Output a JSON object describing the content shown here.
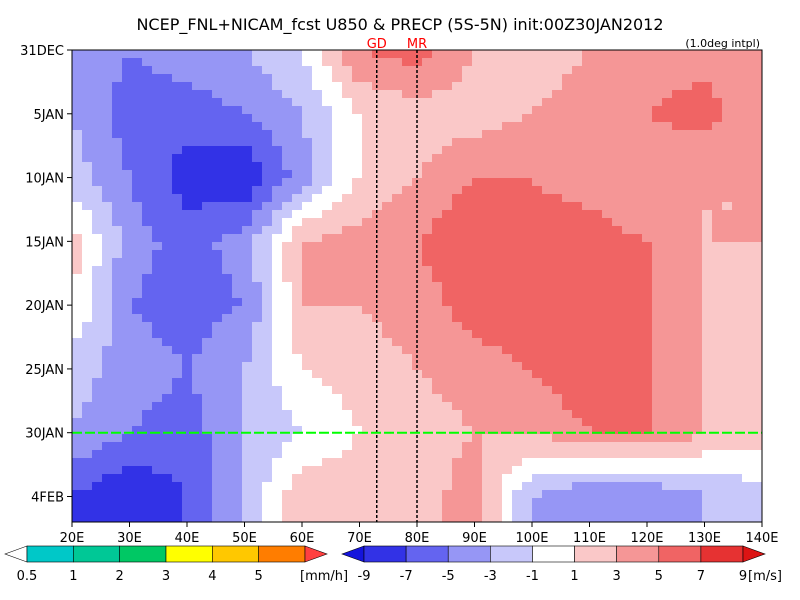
{
  "chart_data": {
    "type": "heatmap",
    "title": "NCEP_FNL+NICAM_fcst U850 & PRECP (5S-5N) init:00Z30JAN2012",
    "note": "(1.0deg intpl)",
    "x_ticks": [
      "20E",
      "30E",
      "40E",
      "50E",
      "60E",
      "70E",
      "80E",
      "90E",
      "100E",
      "110E",
      "120E",
      "130E",
      "140E"
    ],
    "xlim": [
      20,
      140
    ],
    "y_ticks": [
      "31DEC",
      "5JAN",
      "10JAN",
      "15JAN",
      "20JAN",
      "25JAN",
      "30JAN",
      "4FEB"
    ],
    "y_range_days": [
      0,
      37
    ],
    "init_line_day": 30,
    "init_line_color": "#00ff00",
    "markers": [
      {
        "label": "GD",
        "lon": 73
      },
      {
        "label": "MR",
        "lon": 80
      }
    ],
    "marker_color": "#ff0000",
    "precip_colorbar": {
      "labels": [
        "0.5",
        "1",
        "2",
        "3",
        "4",
        "5"
      ],
      "unit": "[mm/h]",
      "colors": [
        "#00c8c8",
        "#00c896",
        "#00c864",
        "#ffff00",
        "#ffc800",
        "#ff7d00",
        "#ff4040"
      ]
    },
    "wind_colorbar": {
      "labels": [
        "-9",
        "-7",
        "-5",
        "-3",
        "-1",
        "1",
        "3",
        "5",
        "7",
        "9"
      ],
      "unit": "[m/s]",
      "colors": [
        "#1414dc",
        "#3232e6",
        "#6464f0",
        "#9696f5",
        "#c8c8fa",
        "#ffffff",
        "#fac8c8",
        "#f59696",
        "#f06464",
        "#e63232",
        "#dc1414"
      ]
    },
    "u850_samples": {
      "lons": [
        20,
        30,
        40,
        50,
        60,
        70,
        80,
        90,
        100,
        110,
        120,
        130,
        140
      ],
      "days": [
        0,
        5,
        10,
        15,
        20,
        25,
        30,
        35
      ],
      "values": [
        [
          -3,
          -5,
          -4,
          -3,
          -1,
          5,
          6,
          3,
          2,
          3,
          4,
          4,
          3
        ],
        [
          -3,
          -6,
          -6,
          -5,
          -3,
          1,
          2,
          2,
          3,
          4,
          5,
          6,
          3
        ],
        [
          -2,
          -5,
          -8,
          -9,
          -4,
          1,
          3,
          5,
          5,
          4,
          3,
          3,
          3
        ],
        [
          2,
          -4,
          -6,
          -4,
          3,
          4,
          5,
          7,
          6,
          6,
          5,
          3,
          3
        ],
        [
          1,
          -5,
          -6,
          -5,
          3,
          3,
          4,
          6,
          7,
          6,
          5,
          3,
          2
        ],
        [
          -2,
          -4,
          -5,
          -3,
          1,
          2,
          3,
          4,
          5,
          7,
          5,
          3,
          2
        ],
        [
          -3,
          -5,
          -6,
          -3,
          -1,
          1,
          2,
          3,
          3,
          5,
          5,
          3,
          2
        ],
        [
          -7,
          -9,
          -7,
          -3,
          3,
          2,
          2,
          4,
          -3,
          -5,
          -5,
          -3,
          -2
        ]
      ]
    }
  }
}
